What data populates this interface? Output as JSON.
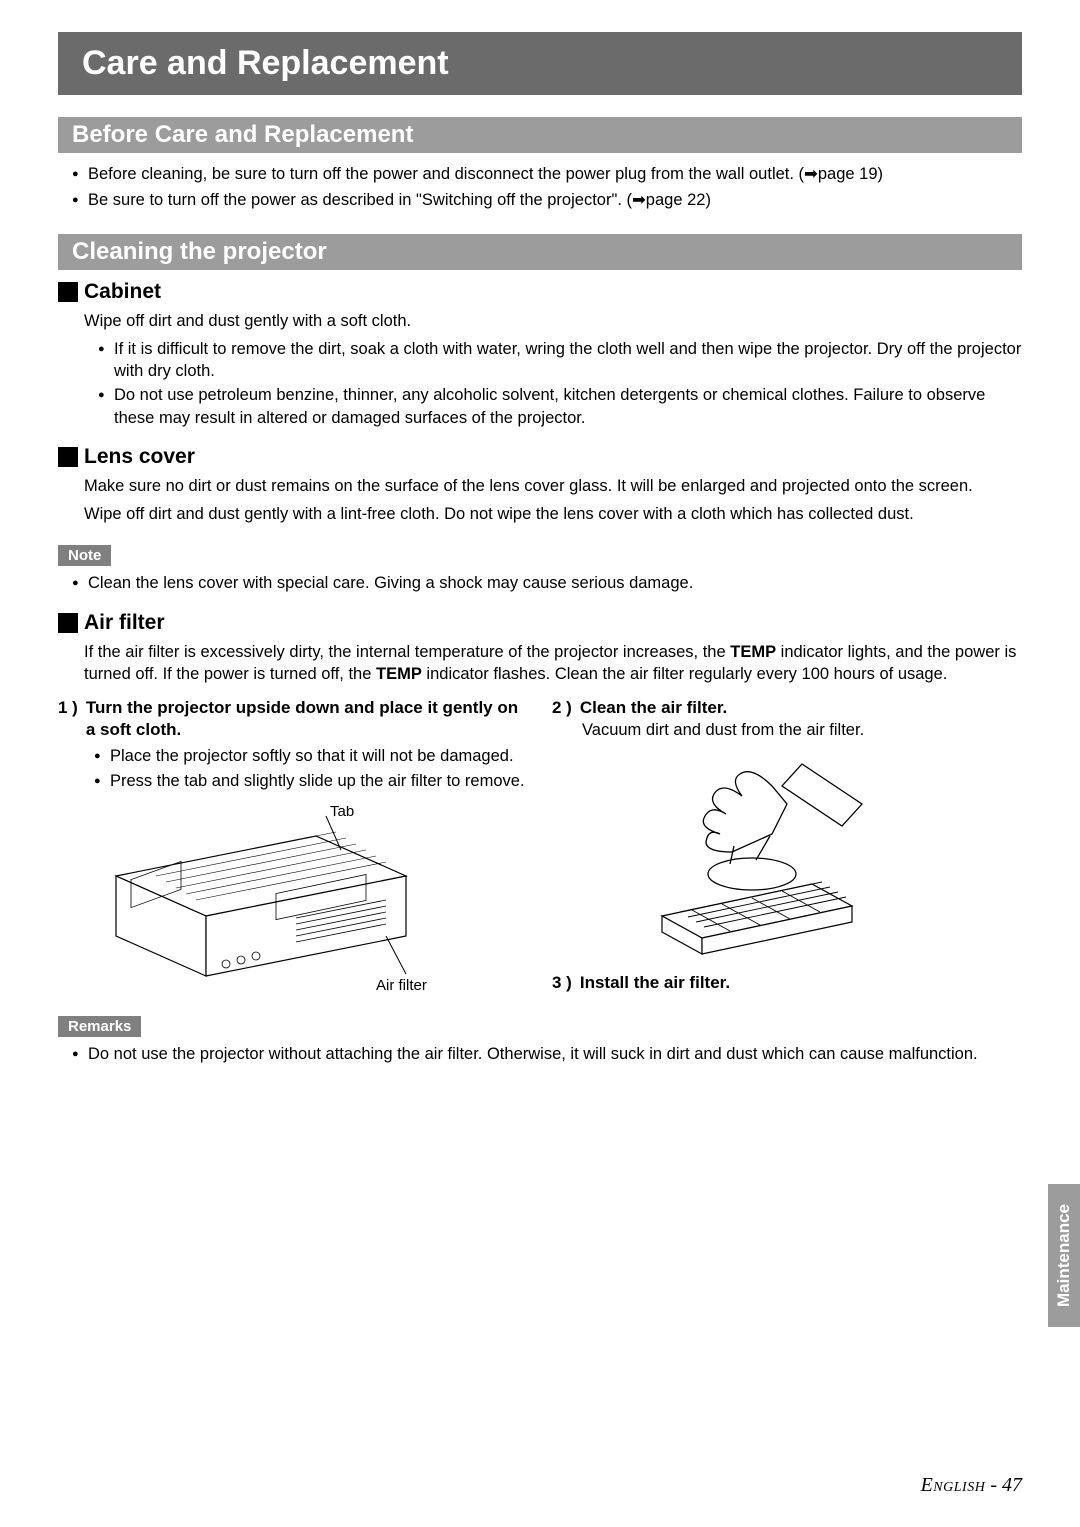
{
  "title": "Care and Replacement",
  "sections": {
    "before": {
      "heading": "Before Care and Replacement",
      "items": [
        "Before cleaning, be sure to turn off the power and disconnect the power plug from the wall outlet. (➡page 19)",
        "Be sure to turn off the power as described in \"Switching off the projector\". (➡page 22)"
      ]
    },
    "cleaning": {
      "heading": "Cleaning the projector",
      "cabinet": {
        "heading": "Cabinet",
        "intro": "Wipe off dirt and dust gently with a soft cloth.",
        "items": [
          "If it is difficult to remove the dirt, soak a cloth with water, wring the cloth well and then wipe the projector. Dry off the projector with dry cloth.",
          "Do not use petroleum benzine, thinner, any alcoholic solvent, kitchen detergents or chemical clothes. Failure to observe these may result in altered or damaged surfaces of the projector."
        ]
      },
      "lens": {
        "heading": "Lens cover",
        "para1": "Make sure no dirt or dust remains on the surface of the lens cover glass. It will be enlarged and projected onto the screen.",
        "para2": "Wipe off dirt and dust gently with a lint-free cloth. Do not wipe the lens cover with a cloth which has collected dust."
      },
      "note": {
        "label": "Note",
        "items": [
          "Clean the lens cover with special care. Giving a shock may cause serious damage."
        ]
      },
      "airfilter": {
        "heading": "Air filter",
        "intro_html": "If the air filter is excessively dirty, the internal temperature of the projector increases, the <b>TEMP</b> indicator lights, and the power is turned off. If the power is turned off, the <b>TEMP</b> indicator flashes. Clean the air filter regularly every 100 hours of usage.",
        "step1": {
          "num": "1 )",
          "title": "Turn the projector upside down and place it gently on a soft cloth.",
          "items": [
            "Place the projector softly so that it will not be damaged.",
            "Press the tab and slightly slide up the air filter to remove."
          ],
          "diagram": {
            "tab_label": "Tab",
            "filter_label": "Air filter"
          }
        },
        "step2": {
          "num": "2 )",
          "title": "Clean the air filter.",
          "text": "Vacuum dirt and dust from the air filter."
        },
        "step3": {
          "num": "3 )",
          "title": "Install the air filter."
        }
      },
      "remarks": {
        "label": "Remarks",
        "items": [
          "Do not use the projector without attaching the air filter. Otherwise, it will suck in dirt and dust which can cause malfunction."
        ]
      }
    }
  },
  "side_tab": "Maintenance",
  "footer": {
    "lang": "English",
    "sep": " - ",
    "page": "47"
  },
  "colors": {
    "title_bg": "#6b6b6b",
    "section_bg": "#9c9c9c",
    "callout_bg": "#808080",
    "text": "#000000",
    "white": "#ffffff"
  }
}
